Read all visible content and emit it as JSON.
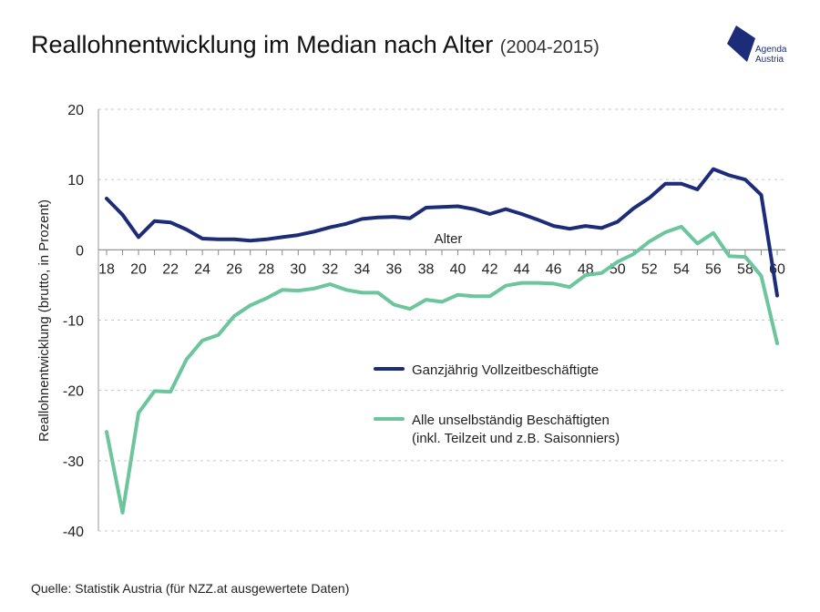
{
  "header": {
    "title": "Reallohnentwicklung im Median nach Alter",
    "period": "(2004-2015)"
  },
  "logo": {
    "line1": "Agenda",
    "line2": "Austria",
    "color": "#1c2c78"
  },
  "source": "Quelle: Statistik Austria (für NZZ.at ausgewertete Daten)",
  "chart_data": {
    "type": "line",
    "xlabel": "Alter",
    "ylabel": "Reallohnentwicklung (brutto, in Prozent)",
    "xlim": [
      18,
      60
    ],
    "ylim": [
      -40,
      20
    ],
    "xticks": [
      "18",
      "20",
      "22",
      "24",
      "26",
      "28",
      "30",
      "32",
      "34",
      "36",
      "38",
      "40",
      "42",
      "44",
      "46",
      "48",
      "50",
      "52",
      "54",
      "56",
      "58",
      "60"
    ],
    "yticks": [
      "20",
      "10",
      "0",
      "-10",
      "-20",
      "-30",
      "-40"
    ],
    "grid": "horizontal dashed",
    "legend_position": "right-center",
    "x": [
      18,
      19,
      20,
      21,
      22,
      23,
      24,
      25,
      26,
      27,
      28,
      29,
      30,
      31,
      32,
      33,
      34,
      35,
      36,
      37,
      38,
      39,
      40,
      41,
      42,
      43,
      44,
      45,
      46,
      47,
      48,
      49,
      50,
      51,
      52,
      53,
      54,
      55,
      56,
      57,
      58,
      59,
      60
    ],
    "series": [
      {
        "name": "Ganzjährig Vollzeitbeschäftigte",
        "color": "#1c2c78",
        "values": [
          7.3,
          5,
          1.8,
          4.1,
          3.9,
          2.9,
          1.6,
          1.5,
          1.5,
          1.3,
          1.5,
          1.8,
          2.1,
          2.6,
          3.2,
          3.7,
          4.4,
          4.6,
          4.7,
          4.5,
          6,
          6.1,
          6.2,
          5.8,
          5.1,
          5.8,
          5.1,
          4.3,
          3.4,
          3,
          3.4,
          3.1,
          4,
          5.9,
          7.4,
          9.4,
          9.4,
          8.6,
          11.5,
          10.6,
          10,
          7.8,
          -6.5
        ]
      },
      {
        "name": "Alle unselbständig Beschäftigten\n(inkl. Teilzeit und z.B. Saisonniers)",
        "name_line1": "Alle unselbständig Beschäftigten",
        "name_line2": "(inkl. Teilzeit und z.B. Saisonniers)",
        "color": "#6cc59d",
        "values": [
          -25.9,
          -37.4,
          -23.2,
          -20.1,
          -20.2,
          -15.6,
          -12.9,
          -12.1,
          -9.4,
          -7.9,
          -6.9,
          -5.7,
          -5.8,
          -5.5,
          -4.9,
          -5.7,
          -6.1,
          -6.1,
          -7.8,
          -8.4,
          -7.1,
          -7.4,
          -6.4,
          -6.6,
          -6.6,
          -5.1,
          -4.7,
          -4.7,
          -4.8,
          -5.3,
          -3.6,
          -3.3,
          -1.7,
          -0.6,
          1.2,
          2.5,
          3.3,
          0.9,
          2.4,
          -0.9,
          -1,
          -3.7,
          -13.3
        ]
      }
    ]
  }
}
